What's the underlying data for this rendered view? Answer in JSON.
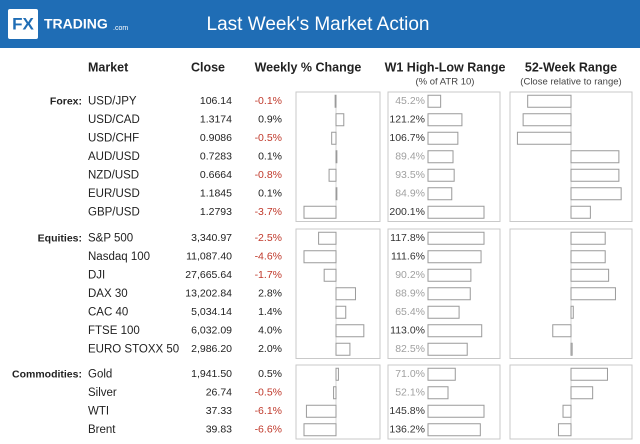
{
  "header": {
    "logo": "FX",
    "brand": "TRADING",
    "brand_suffix": ".com",
    "title": "Last Week's Market Action"
  },
  "columns": {
    "market": "Market",
    "close": "Close",
    "change": "Weekly % Change",
    "range": "W1 High-Low Range",
    "range_note": "(% of ATR 10)",
    "year": "52-Week Range",
    "year_note": "(Close relative to range)"
  },
  "groups": [
    {
      "name": "Forex:",
      "rows": [
        {
          "market": "USD/JPY",
          "close": "106.14",
          "change": -0.1,
          "change_label": "-0.1%",
          "range": 45.2,
          "range_label": "45.2%",
          "year": -38
        },
        {
          "market": "USD/CAD",
          "close": "1.3174",
          "change": 0.9,
          "change_label": "0.9%",
          "range": 121.2,
          "range_label": "121.2%",
          "year": -42
        },
        {
          "market": "USD/CHF",
          "close": "0.9086",
          "change": -0.5,
          "change_label": "-0.5%",
          "range": 106.7,
          "range_label": "106.7%",
          "year": -47
        },
        {
          "market": "AUD/USD",
          "close": "0.7283",
          "change": 0.1,
          "change_label": "0.1%",
          "range": 89.4,
          "range_label": "89.4%",
          "year": 42
        },
        {
          "market": "NZD/USD",
          "close": "0.6664",
          "change": -0.8,
          "change_label": "-0.8%",
          "range": 93.5,
          "range_label": "93.5%",
          "year": 42
        },
        {
          "market": "EUR/USD",
          "close": "1.1845",
          "change": 0.1,
          "change_label": "0.1%",
          "range": 84.9,
          "range_label": "84.9%",
          "year": 44
        },
        {
          "market": "GBP/USD",
          "close": "1.2793",
          "change": -3.7,
          "change_label": "-3.7%",
          "range": 200.1,
          "range_label": "200.1%",
          "year": 17
        }
      ]
    },
    {
      "name": "Equities:",
      "rows": [
        {
          "market": "S&P 500",
          "close": "3,340.97",
          "change": -2.5,
          "change_label": "-2.5%",
          "range": 117.8,
          "range_label": "117.8%",
          "year": 30
        },
        {
          "market": "Nasdaq 100",
          "close": "11,087.40",
          "change": -4.6,
          "change_label": "-4.6%",
          "range": 111.6,
          "range_label": "111.6%",
          "year": 30
        },
        {
          "market": "DJI",
          "close": "27,665.64",
          "change": -1.7,
          "change_label": "-1.7%",
          "range": 90.2,
          "range_label": "90.2%",
          "year": 33
        },
        {
          "market": "DAX 30",
          "close": "13,202.84",
          "change": 2.8,
          "change_label": "2.8%",
          "range": 88.9,
          "range_label": "88.9%",
          "year": 39
        },
        {
          "market": "CAC 40",
          "close": "5,034.14",
          "change": 1.4,
          "change_label": "1.4%",
          "range": 65.4,
          "range_label": "65.4%",
          "year": 2
        },
        {
          "market": "FTSE 100",
          "close": "6,032.09",
          "change": 4.0,
          "change_label": "4.0%",
          "range": 113.0,
          "range_label": "113.0%",
          "year": -16
        },
        {
          "market": "EURO STOXX 50",
          "close": "2,986.20",
          "change": 2.0,
          "change_label": "2.0%",
          "range": 82.5,
          "range_label": "82.5%",
          "year": 1
        }
      ]
    },
    {
      "name": "Commodities:",
      "rows": [
        {
          "market": "Gold",
          "close": "1,941.50",
          "change": 0.5,
          "change_label": "0.5%",
          "range": 71.0,
          "range_label": "71.0%",
          "year": 32
        },
        {
          "market": "Silver",
          "close": "26.74",
          "change": -0.5,
          "change_label": "-0.5%",
          "range": 52.1,
          "range_label": "52.1%",
          "year": 19
        },
        {
          "market": "WTI",
          "close": "37.33",
          "change": -6.1,
          "change_label": "-6.1%",
          "range": 145.8,
          "range_label": "145.8%",
          "year": -7
        },
        {
          "market": "Brent",
          "close": "39.83",
          "change": -6.6,
          "change_label": "-6.6%",
          "range": 136.2,
          "range_label": "136.2%",
          "year": -11
        }
      ]
    }
  ]
}
